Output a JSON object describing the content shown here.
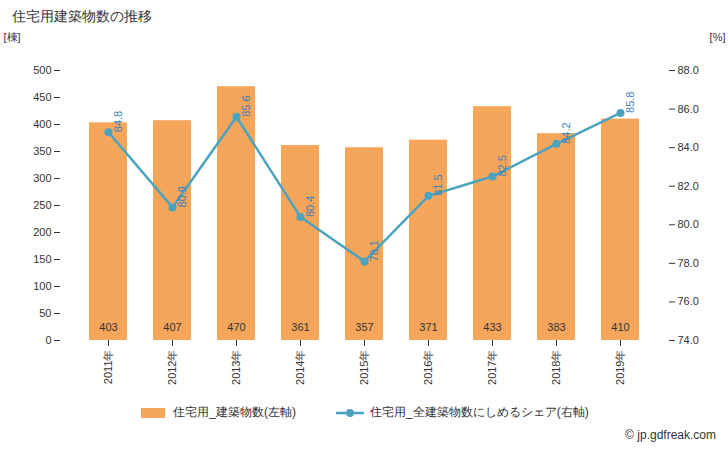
{
  "chart_data": {
    "type": "bar",
    "title": "住宅用建築物数の推移",
    "categories": [
      "2011年",
      "2012年",
      "2013年",
      "2014年",
      "2015年",
      "2016年",
      "2017年",
      "2018年",
      "2019年"
    ],
    "series": [
      {
        "name": "住宅用_建築物数(左軸)",
        "type": "bar",
        "color": "#f5a65b",
        "values": [
          403,
          407,
          470,
          361,
          357,
          371,
          433,
          383,
          410
        ]
      },
      {
        "name": "住宅用_全建築物数にしめるシェア(右軸)",
        "type": "line",
        "axis": "y2",
        "color": "#4ba3bf",
        "marker": "circle",
        "values": [
          84.8,
          80.9,
          85.6,
          80.4,
          78.1,
          81.5,
          82.5,
          84.2,
          85.8
        ]
      }
    ],
    "ylabel": "[棟]",
    "y2label": "[%]",
    "ylim": [
      0,
      500
    ],
    "yticks": [
      0,
      50,
      100,
      150,
      200,
      250,
      300,
      350,
      400,
      450,
      500
    ],
    "y2lim": [
      74,
      88
    ],
    "y2ticks": [
      {
        "value": 74,
        "label": "74.0"
      },
      {
        "value": 76,
        "label": "76.0"
      },
      {
        "value": 78,
        "label": "78.0"
      },
      {
        "value": 80,
        "label": "80.0"
      },
      {
        "value": 82,
        "label": "82.0"
      },
      {
        "value": 84,
        "label": "84.0"
      },
      {
        "value": 86,
        "label": "86.0"
      },
      {
        "value": 88,
        "label": "88.0"
      }
    ],
    "data_labels": true,
    "grid": false,
    "legend": "bottom",
    "caption": "© jp.gdfreak.com"
  }
}
